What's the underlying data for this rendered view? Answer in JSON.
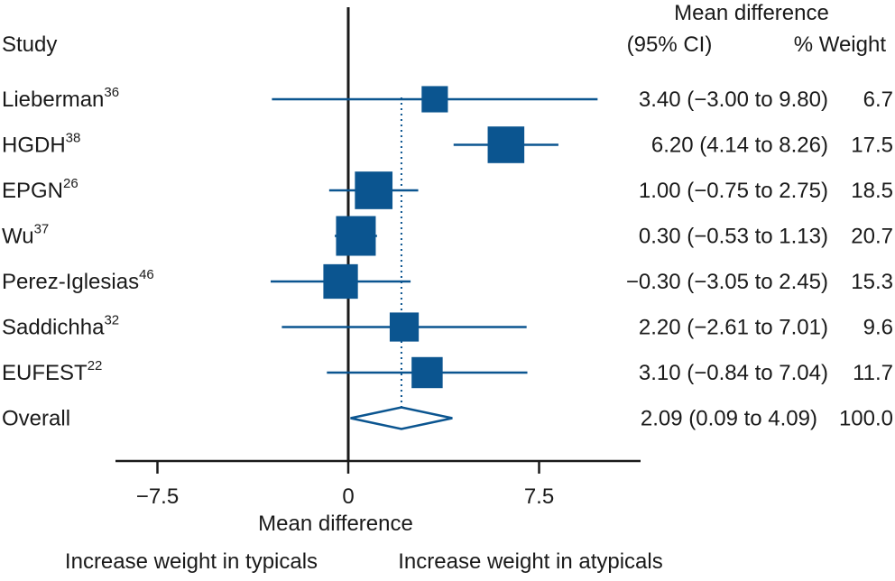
{
  "chart_data": {
    "type": "forest",
    "title": "",
    "xlabel": "Mean difference",
    "xlim": [
      -9.2,
      11.7
    ],
    "xticks": [
      -7.5,
      0,
      7.5
    ],
    "xtick_labels": [
      "−7.5",
      "0",
      "7.5"
    ],
    "header": {
      "study": "Study",
      "effect_line1": "Mean difference",
      "effect_line2": "(95% CI)",
      "weight": "% Weight"
    },
    "direction_left": "Increase weight in typicals",
    "direction_right": "Increase weight in atypicals",
    "colors": {
      "marker": "#0b5590",
      "axis": "#1a1a1a"
    },
    "studies": [
      {
        "name": "Lieberman",
        "ref": "36",
        "effect": 3.4,
        "lower": -3.0,
        "upper": 9.8,
        "effect_text": "3.40 (−3.00 to 9.80)",
        "weight": 6.7,
        "weight_text": "6.7"
      },
      {
        "name": "HGDH",
        "ref": "38",
        "effect": 6.2,
        "lower": 4.14,
        "upper": 8.26,
        "effect_text": "6.20 (4.14 to 8.26)",
        "weight": 17.5,
        "weight_text": "17.5"
      },
      {
        "name": "EPGN",
        "ref": "26",
        "effect": 1.0,
        "lower": -0.75,
        "upper": 2.75,
        "effect_text": "1.00 (−0.75 to 2.75)",
        "weight": 18.5,
        "weight_text": "18.5"
      },
      {
        "name": "Wu",
        "ref": "37",
        "effect": 0.3,
        "lower": -0.53,
        "upper": 1.13,
        "effect_text": "0.30 (−0.53 to 1.13)",
        "weight": 20.7,
        "weight_text": "20.7"
      },
      {
        "name": "Perez-Iglesias",
        "ref": "46",
        "effect": -0.3,
        "lower": -3.05,
        "upper": 2.45,
        "effect_text": "−0.30 (−3.05 to 2.45)",
        "weight": 15.3,
        "weight_text": "15.3"
      },
      {
        "name": "Saddichha",
        "ref": "32",
        "effect": 2.2,
        "lower": -2.61,
        "upper": 7.01,
        "effect_text": "2.20 (−2.61 to 7.01)",
        "weight": 9.6,
        "weight_text": "9.6"
      },
      {
        "name": "EUFEST",
        "ref": "22",
        "effect": 3.1,
        "lower": -0.84,
        "upper": 7.04,
        "effect_text": "3.10 (−0.84 to 7.04)",
        "weight": 11.7,
        "weight_text": "11.7"
      }
    ],
    "overall": {
      "name": "Overall",
      "effect": 2.09,
      "lower": 0.09,
      "upper": 4.09,
      "effect_text": "2.09 (0.09 to 4.09)",
      "weight_text": "100.0"
    }
  }
}
